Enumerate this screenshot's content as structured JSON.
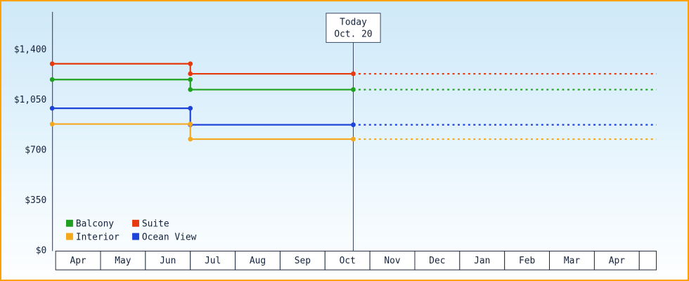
{
  "frame": {
    "border_color": "#ffa200",
    "bg_top": "#cfe9f8",
    "bg_bottom": "#fdfeff"
  },
  "chart_data": {
    "type": "step-line",
    "description": "Cabin price history by category with dotted projection after today",
    "y_axis": {
      "max": 1400,
      "ticks": [
        {
          "label": "$1,400",
          "value": 1400
        },
        {
          "label": "$1,050",
          "value": 1050
        },
        {
          "label": "$700",
          "value": 700
        },
        {
          "label": "$350",
          "value": 350
        },
        {
          "label": "$0",
          "value": 0
        }
      ]
    },
    "x_axis": {
      "months": [
        "Apr",
        "May",
        "Jun",
        "Jul",
        "Aug",
        "Sep",
        "Oct",
        "Nov",
        "Dec",
        "Jan",
        "Feb",
        "Mar",
        "Apr"
      ]
    },
    "today_marker": {
      "line1": "Today",
      "line2": "Oct. 20",
      "month_index": 6,
      "month_fraction": 0.63
    },
    "price_change_month_index": 3,
    "series": [
      {
        "name": "Suite",
        "color": "#e63a0e",
        "initial_price": 1300,
        "current_price": 1230
      },
      {
        "name": "Balcony",
        "color": "#1fa11f",
        "initial_price": 1190,
        "current_price": 1120
      },
      {
        "name": "Ocean View",
        "color": "#1d44d8",
        "initial_price": 990,
        "current_price": 875
      },
      {
        "name": "Interior",
        "color": "#f4a81d",
        "initial_price": 880,
        "current_price": 775
      }
    ],
    "legend_rows": [
      [
        "Balcony",
        "Suite"
      ],
      [
        "Interior",
        "Ocean View"
      ]
    ]
  }
}
